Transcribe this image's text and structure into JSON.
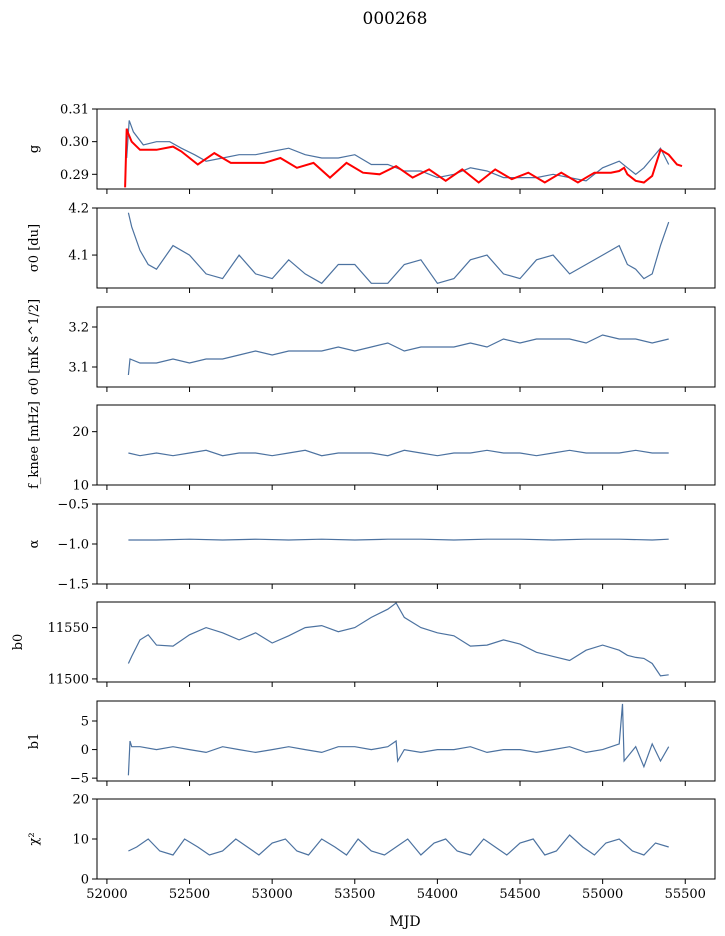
{
  "figure": {
    "title": "000268",
    "xlabel": "MJD"
  },
  "colors": {
    "series": "#4c72a0",
    "fit": "#ff0000",
    "axes": "#000000"
  },
  "chart_data": [
    {
      "type": "line",
      "ylabel": "g",
      "ylim": [
        0.2855,
        0.31
      ],
      "yticks": [
        0.29,
        0.3,
        0.31
      ],
      "ytick_labels": [
        "0.29",
        "0.30",
        "0.31"
      ],
      "xlim": [
        51940,
        55680
      ],
      "series": [
        {
          "x": [
            52120,
            52135,
            52160,
            52220,
            52300,
            52380,
            52450,
            52530,
            52600,
            52700,
            52800,
            52900,
            53000,
            53100,
            53200,
            53300,
            53400,
            53500,
            53600,
            53700,
            53800,
            53900,
            54000,
            54100,
            54200,
            54300,
            54400,
            54500,
            54600,
            54700,
            54800,
            54900,
            55000,
            55100,
            55150,
            55200,
            55250,
            55300,
            55350,
            55400
          ],
          "y": [
            0.295,
            0.3065,
            0.303,
            0.299,
            0.3,
            0.3,
            0.298,
            0.296,
            0.294,
            0.295,
            0.296,
            0.296,
            0.297,
            0.298,
            0.296,
            0.295,
            0.295,
            0.296,
            0.293,
            0.293,
            0.291,
            0.291,
            0.289,
            0.29,
            0.292,
            0.291,
            0.289,
            0.289,
            0.289,
            0.29,
            0.289,
            0.288,
            0.292,
            0.294,
            0.292,
            0.29,
            0.292,
            0.295,
            0.298,
            0.293
          ]
        },
        {
          "x": [
            52110,
            52120,
            52125,
            52150,
            52200,
            52300,
            52400,
            52450,
            52550,
            52650,
            52750,
            52850,
            52950,
            53050,
            53150,
            53250,
            53350,
            53450,
            53550,
            53650,
            53750,
            53850,
            53950,
            54050,
            54150,
            54250,
            54350,
            54450,
            54550,
            54650,
            54750,
            54850,
            54950,
            55050,
            55100,
            55130,
            55150,
            55200,
            55250,
            55300,
            55350,
            55400,
            55450,
            55480
          ],
          "y": [
            0.286,
            0.304,
            0.303,
            0.3,
            0.2975,
            0.2975,
            0.2985,
            0.297,
            0.293,
            0.2965,
            0.2935,
            0.2935,
            0.2935,
            0.295,
            0.292,
            0.2935,
            0.289,
            0.2935,
            0.2905,
            0.29,
            0.2925,
            0.289,
            0.2915,
            0.288,
            0.2915,
            0.2875,
            0.2915,
            0.2885,
            0.2905,
            0.2875,
            0.2905,
            0.2875,
            0.2905,
            0.2905,
            0.291,
            0.292,
            0.29,
            0.288,
            0.2875,
            0.2895,
            0.2975,
            0.296,
            0.293,
            0.2925
          ]
        }
      ]
    },
    {
      "type": "line",
      "ylabel": "σ0 [du]",
      "ylim": [
        4.03,
        4.2
      ],
      "yticks": [
        4.1,
        4.2
      ],
      "ytick_labels": [
        "4.1",
        "4.2"
      ],
      "xlim": [
        51940,
        55680
      ],
      "series": [
        {
          "x": [
            52130,
            52150,
            52200,
            52250,
            52300,
            52400,
            52500,
            52600,
            52700,
            52800,
            52900,
            53000,
            53100,
            53200,
            53300,
            53400,
            53500,
            53600,
            53700,
            53800,
            53900,
            54000,
            54100,
            54200,
            54300,
            54400,
            54500,
            54600,
            54700,
            54800,
            54900,
            55000,
            55050,
            55100,
            55150,
            55200,
            55250,
            55300,
            55350,
            55400
          ],
          "y": [
            4.19,
            4.16,
            4.11,
            4.08,
            4.07,
            4.12,
            4.1,
            4.06,
            4.05,
            4.1,
            4.06,
            4.05,
            4.09,
            4.06,
            4.04,
            4.08,
            4.08,
            4.04,
            4.04,
            4.08,
            4.09,
            4.04,
            4.05,
            4.09,
            4.1,
            4.06,
            4.05,
            4.09,
            4.1,
            4.06,
            4.08,
            4.1,
            4.11,
            4.12,
            4.08,
            4.07,
            4.05,
            4.06,
            4.12,
            4.17
          ]
        }
      ]
    },
    {
      "type": "line",
      "ylabel": "σ0 [mK s^1/2]",
      "ylim": [
        3.05,
        3.25
      ],
      "yticks": [
        3.1,
        3.2
      ],
      "ytick_labels": [
        "3.1",
        "3.2"
      ],
      "xlim": [
        51940,
        55680
      ],
      "series": [
        {
          "x": [
            52130,
            52140,
            52200,
            52300,
            52400,
            52500,
            52600,
            52700,
            52800,
            52900,
            53000,
            53100,
            53200,
            53300,
            53400,
            53500,
            53600,
            53700,
            53800,
            53900,
            54000,
            54100,
            54200,
            54300,
            54400,
            54500,
            54600,
            54700,
            54800,
            54900,
            55000,
            55100,
            55200,
            55300,
            55400
          ],
          "y": [
            3.08,
            3.12,
            3.11,
            3.11,
            3.12,
            3.11,
            3.12,
            3.12,
            3.13,
            3.14,
            3.13,
            3.14,
            3.14,
            3.14,
            3.15,
            3.14,
            3.15,
            3.16,
            3.14,
            3.15,
            3.15,
            3.15,
            3.16,
            3.15,
            3.17,
            3.16,
            3.17,
            3.17,
            3.17,
            3.16,
            3.18,
            3.17,
            3.17,
            3.16,
            3.17
          ]
        }
      ]
    },
    {
      "type": "line",
      "ylabel": "f_knee [mHz]",
      "ylim": [
        10,
        25
      ],
      "yticks": [
        10,
        20
      ],
      "ytick_labels": [
        "10",
        "20"
      ],
      "xlim": [
        51940,
        55680
      ],
      "series": [
        {
          "x": [
            52130,
            52200,
            52300,
            52400,
            52500,
            52600,
            52700,
            52800,
            52900,
            53000,
            53100,
            53200,
            53300,
            53400,
            53500,
            53600,
            53700,
            53800,
            53900,
            54000,
            54100,
            54200,
            54300,
            54400,
            54500,
            54600,
            54700,
            54800,
            54900,
            55000,
            55100,
            55200,
            55300,
            55400
          ],
          "y": [
            16,
            15.5,
            16,
            15.5,
            16,
            16.5,
            15.5,
            16,
            16,
            15.5,
            16,
            16.5,
            15.5,
            16,
            16,
            16,
            15.5,
            16.5,
            16,
            15.5,
            16,
            16,
            16.5,
            16,
            16,
            15.5,
            16,
            16.5,
            16,
            16,
            16,
            16.5,
            16,
            16
          ]
        }
      ]
    },
    {
      "type": "line",
      "ylabel": "α",
      "ylim": [
        -1.5,
        -0.5
      ],
      "yticks": [
        -1.5,
        -1.0,
        -0.5
      ],
      "ytick_labels": [
        "−1.5",
        "−1.0",
        "−0.5"
      ],
      "xlim": [
        51940,
        55680
      ],
      "series": [
        {
          "x": [
            52130,
            52300,
            52500,
            52700,
            52900,
            53100,
            53300,
            53500,
            53700,
            53900,
            54100,
            54300,
            54500,
            54700,
            54900,
            55100,
            55300,
            55400
          ],
          "y": [
            -0.95,
            -0.95,
            -0.94,
            -0.95,
            -0.94,
            -0.95,
            -0.94,
            -0.95,
            -0.94,
            -0.94,
            -0.95,
            -0.94,
            -0.94,
            -0.95,
            -0.94,
            -0.94,
            -0.95,
            -0.94
          ]
        }
      ]
    },
    {
      "type": "line",
      "ylabel": "b0",
      "ylim": [
        11497,
        11575
      ],
      "yticks": [
        11500,
        11550
      ],
      "ytick_labels": [
        "11500",
        "11550"
      ],
      "xlim": [
        51940,
        55680
      ],
      "series": [
        {
          "x": [
            52130,
            52150,
            52200,
            52250,
            52300,
            52400,
            52500,
            52600,
            52700,
            52800,
            52900,
            53000,
            53100,
            53200,
            53300,
            53400,
            53500,
            53600,
            53700,
            53750,
            53800,
            53900,
            54000,
            54100,
            54200,
            54300,
            54400,
            54500,
            54600,
            54700,
            54800,
            54900,
            55000,
            55100,
            55150,
            55200,
            55250,
            55300,
            55350,
            55400
          ],
          "y": [
            11515,
            11522,
            11538,
            11543,
            11533,
            11532,
            11543,
            11550,
            11545,
            11538,
            11545,
            11535,
            11542,
            11550,
            11552,
            11546,
            11550,
            11560,
            11568,
            11574,
            11560,
            11550,
            11545,
            11542,
            11532,
            11533,
            11538,
            11534,
            11526,
            11522,
            11518,
            11528,
            11533,
            11528,
            11523,
            11521,
            11520,
            11515,
            11503,
            11504
          ]
        }
      ]
    },
    {
      "type": "line",
      "ylabel": "b1",
      "ylim": [
        -5.5,
        8.5
      ],
      "yticks": [
        -5,
        0,
        5
      ],
      "ytick_labels": [
        "−5",
        "0",
        "5"
      ],
      "xlim": [
        51940,
        55680
      ],
      "series": [
        {
          "x": [
            52130,
            52140,
            52150,
            52200,
            52300,
            52400,
            52500,
            52600,
            52700,
            52800,
            52900,
            53000,
            53100,
            53200,
            53300,
            53400,
            53500,
            53600,
            53700,
            53750,
            53760,
            53800,
            53900,
            54000,
            54100,
            54200,
            54300,
            54400,
            54500,
            54600,
            54700,
            54800,
            54900,
            55000,
            55100,
            55120,
            55130,
            55200,
            55250,
            55300,
            55350,
            55400
          ],
          "y": [
            -4.5,
            1.5,
            0.5,
            0.5,
            0,
            0.5,
            0,
            -0.5,
            0.5,
            0,
            -0.5,
            0,
            0.5,
            0,
            -0.5,
            0.5,
            0.5,
            0,
            0.5,
            1.5,
            -2,
            0,
            -0.5,
            0,
            0,
            0.5,
            -0.5,
            0,
            0,
            -0.5,
            0,
            0.5,
            -0.5,
            0,
            1,
            8,
            -2,
            0.5,
            -3,
            1,
            -2,
            0.5
          ]
        }
      ]
    },
    {
      "type": "line",
      "ylabel": "χ²",
      "ylim": [
        0,
        20
      ],
      "yticks": [
        0,
        10,
        20
      ],
      "ytick_labels": [
        "0",
        "10",
        "20"
      ],
      "xlim": [
        51940,
        55680
      ],
      "xticks": [
        52000,
        52500,
        53000,
        53500,
        54000,
        54500,
        55000,
        55500
      ],
      "xtick_labels": [
        "52000",
        "52500",
        "53000",
        "53500",
        "54000",
        "54500",
        "55000",
        "55500"
      ],
      "series": [
        {
          "x": [
            52130,
            52180,
            52250,
            52320,
            52400,
            52470,
            52550,
            52620,
            52700,
            52780,
            52850,
            52920,
            53000,
            53080,
            53150,
            53220,
            53300,
            53380,
            53450,
            53520,
            53600,
            53680,
            53750,
            53820,
            53900,
            53980,
            54050,
            54120,
            54200,
            54280,
            54350,
            54420,
            54500,
            54580,
            54650,
            54720,
            54800,
            54880,
            54950,
            55020,
            55100,
            55180,
            55250,
            55320,
            55400
          ],
          "y": [
            7,
            8,
            10,
            7,
            6,
            10,
            8,
            6,
            7,
            10,
            8,
            6,
            9,
            10,
            7,
            6,
            10,
            8,
            6,
            10,
            7,
            6,
            8,
            10,
            6,
            9,
            10,
            7,
            6,
            10,
            8,
            6,
            9,
            10,
            6,
            7,
            11,
            8,
            6,
            9,
            10,
            7,
            6,
            9,
            8
          ]
        }
      ]
    }
  ]
}
